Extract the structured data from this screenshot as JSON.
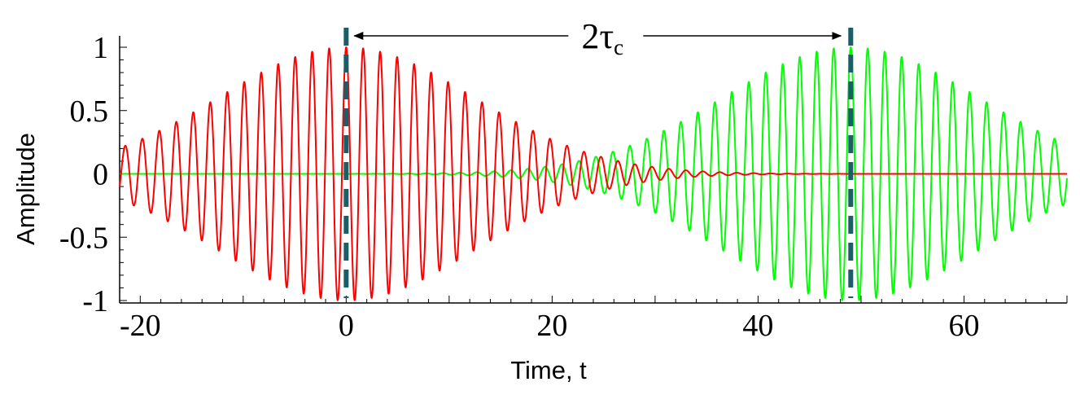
{
  "chart_data": {
    "type": "line",
    "title": "",
    "xlabel": "Time, t",
    "ylabel": "Amplitude",
    "xlim": [
      -22,
      70
    ],
    "ylim": [
      -1.05,
      1.05
    ],
    "x_ticks": [
      -20,
      0,
      20,
      40,
      60
    ],
    "x_tick_labels": [
      "-20",
      "0",
      "20",
      "40",
      "60"
    ],
    "y_ticks": [
      1,
      0.5,
      0,
      -0.5,
      -1
    ],
    "y_tick_labels": [
      "1",
      "0.5",
      "0",
      "-0.5",
      "-1"
    ],
    "grid": false,
    "legend": "none",
    "series": [
      {
        "description": "Gaussian-enveloped cosine wave packet",
        "center": 0,
        "envelope_peak": 1,
        "envelope_1e_halfwidth": 17.5,
        "carrier_period": 1.65,
        "color": "#ff0000"
      },
      {
        "description": "Gaussian-enveloped cosine wave packet",
        "center": 49,
        "envelope_peak": 1,
        "envelope_1e_halfwidth": 17.5,
        "carrier_period": 1.65,
        "color": "#00ff00"
      }
    ],
    "markers": [
      {
        "x": 0,
        "style": "dashed",
        "color": "#1a5e68"
      },
      {
        "x": 49,
        "style": "dashed",
        "color": "#1a5e68"
      }
    ],
    "annotation": {
      "from_x": 0,
      "to_x": 49,
      "label_main": "2τ",
      "label_subscript": "c"
    }
  }
}
